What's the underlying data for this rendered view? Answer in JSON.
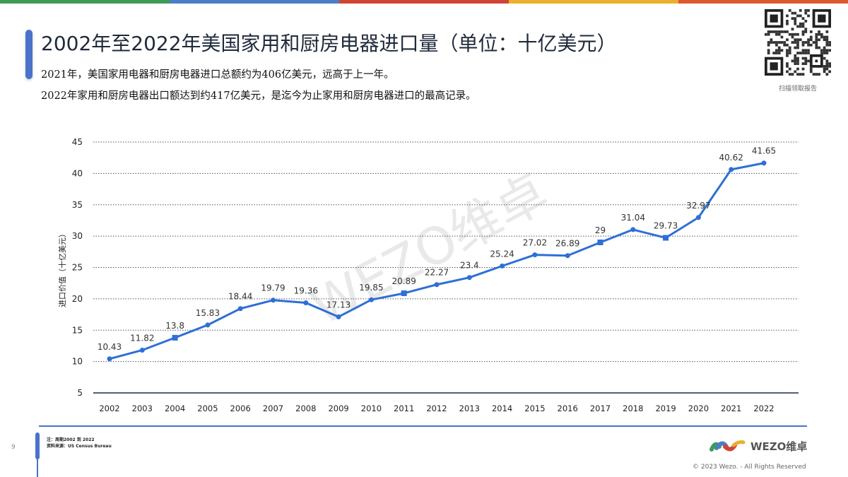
{
  "topbar": {
    "colors": [
      "#3e9c56",
      "#4a7fc4",
      "#d04436",
      "#eaaf2e",
      "#dc5a2c"
    ]
  },
  "header": {
    "title": "2002年至2022年美国家用和厨房电器进口量（单位：十亿美元）",
    "subtitle_1": "2021年，美国家用电器和厨房电器进口总额约为406亿美元，远高于上一年。",
    "subtitle_2": "2022年家用和厨房电器出口额达到约417亿美元，是迄今为止家用和厨房电器进口的最高记录。"
  },
  "qr": {
    "caption": "扫描领取报告"
  },
  "watermark": "WEZO维卓",
  "chart_data": {
    "type": "line",
    "title": "2002年至2022年美国家用和厨房电器进口量（单位：十亿美元）",
    "xlabel": "",
    "ylabel": "进口价值（十亿美元）",
    "categories": [
      "2002",
      "2003",
      "2004",
      "2005",
      "2006",
      "2007",
      "2008",
      "2009",
      "2010",
      "2011",
      "2012",
      "2013",
      "2014",
      "2015",
      "2016",
      "2017",
      "2018",
      "2019",
      "2020",
      "2021",
      "2022"
    ],
    "series": [
      {
        "name": "进口价值",
        "color": "#2f6fd6",
        "values": [
          10.43,
          11.82,
          13.8,
          15.83,
          18.44,
          19.79,
          19.36,
          17.13,
          19.85,
          20.89,
          22.27,
          23.4,
          25.24,
          27.02,
          26.89,
          29,
          31.04,
          29.73,
          32.97,
          40.62,
          41.65
        ]
      }
    ],
    "data_labels": [
      "10.43",
      "11.82",
      "13.8",
      "15.83",
      "18.44",
      "19.79",
      "19.36",
      "17.13",
      "19.85",
      "20.89",
      "22.27",
      "23.4",
      "25.24",
      "27.02",
      "26.89",
      "29",
      "31.04",
      "29.73",
      "32.97",
      "40.62",
      "41.65"
    ],
    "yticks": [
      5,
      10,
      15,
      20,
      25,
      30,
      35,
      40,
      45
    ],
    "ylim": [
      5,
      45
    ],
    "grid": "dotted horizontal",
    "legend": "none"
  },
  "footer": {
    "page_number": "9",
    "note_1": "注：周期2002 到 2022",
    "note_2": "资料来源：US Census Bureau",
    "logo_text": "WEZO维卓",
    "copyright": "© 2023 Wezo. - All Rights Reserved"
  }
}
